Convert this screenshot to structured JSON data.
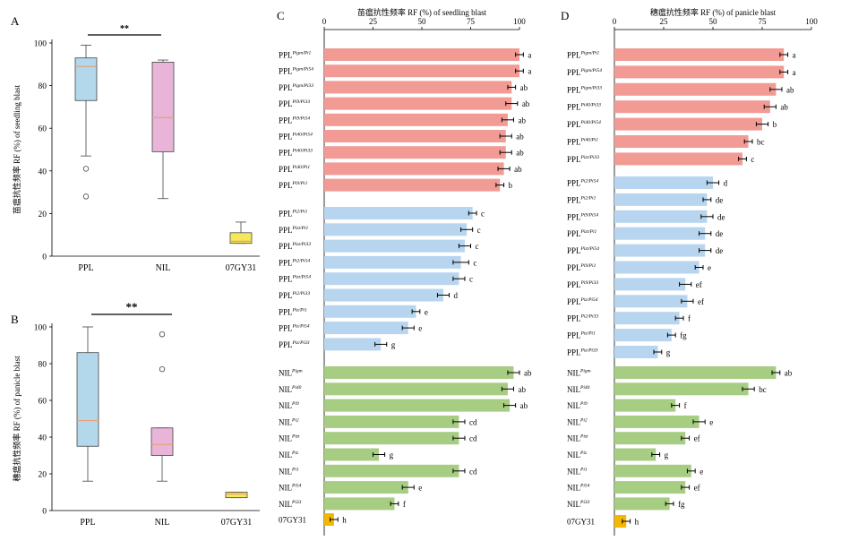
{
  "colors": {
    "ppl_box": "#b3d8ec",
    "nil_box": "#e8b4d8",
    "gy_box": "#f6e85a",
    "median_line": "#e8a070",
    "red_bar": "#f29a94",
    "blue_bar": "#b7d5ee",
    "green_bar": "#a6cd82",
    "orange_bar": "#f5b800"
  },
  "chart_data": [
    {
      "type": "box",
      "panel_label": "A",
      "ylabel": "苗瘟抗性频率 RF (%) of seedling blast",
      "ylim": [
        0,
        100
      ],
      "yticks": [
        0,
        20,
        40,
        60,
        80,
        100
      ],
      "significance": "**",
      "categories": [
        "PPL",
        "NIL",
        "07GY31"
      ],
      "boxes": [
        {
          "name": "PPL",
          "min": 47,
          "q1": 73,
          "median": 89,
          "q3": 93,
          "max": 99,
          "outliers": [
            41,
            28
          ]
        },
        {
          "name": "NIL",
          "min": 27,
          "q1": 49,
          "median": 65,
          "q3": 91,
          "max": 92,
          "outliers": []
        },
        {
          "name": "07GY31",
          "min": 6,
          "q1": 6,
          "median": 7,
          "q3": 11,
          "max": 16,
          "outliers": []
        }
      ]
    },
    {
      "type": "box",
      "panel_label": "B",
      "ylabel": "穗瘟抗性频率 RF (%) of panicle blast",
      "ylim": [
        0,
        100
      ],
      "yticks": [
        0,
        20,
        40,
        60,
        80,
        100
      ],
      "significance": "**",
      "categories": [
        "PPL",
        "NIL",
        "07GY31"
      ],
      "boxes": [
        {
          "name": "PPL",
          "min": 16,
          "q1": 35,
          "median": 49,
          "q3": 86,
          "max": 100,
          "outliers": []
        },
        {
          "name": "NIL",
          "min": 16,
          "q1": 30,
          "median": 36,
          "q3": 45,
          "max": 45,
          "outliers": [
            96,
            77
          ]
        },
        {
          "name": "07GY31",
          "min": 7,
          "q1": 7,
          "median": 9,
          "q3": 10,
          "max": 10,
          "outliers": []
        }
      ]
    },
    {
      "type": "bar",
      "orientation": "horizontal",
      "panel_label": "C",
      "title": "苗瘟抗性频率 RF (%) of seedling blast",
      "xlim": [
        0,
        100
      ],
      "xticks": [
        0,
        25,
        50,
        75,
        100
      ],
      "groups": [
        {
          "color": "red",
          "items": [
            {
              "base": "PPL",
              "sup": "Pigm/Pi1",
              "value": 100,
              "err": 2,
              "letter": "a"
            },
            {
              "base": "PPL",
              "sup": "Pigm/Pi54",
              "value": 100,
              "err": 2,
              "letter": "a"
            },
            {
              "base": "PPL",
              "sup": "Pigm/Pi33",
              "value": 96,
              "err": 2,
              "letter": "ab"
            },
            {
              "base": "PPL",
              "sup": "Pi9/Pi33",
              "value": 96,
              "err": 3,
              "letter": "ab"
            },
            {
              "base": "PPL",
              "sup": "Pi9/Pi54",
              "value": 94,
              "err": 3,
              "letter": "ab"
            },
            {
              "base": "PPL",
              "sup": "Pi40/Pi54",
              "value": 93,
              "err": 3,
              "letter": "ab"
            },
            {
              "base": "PPL",
              "sup": "Pi40/Pi33",
              "value": 93,
              "err": 3,
              "letter": "ab"
            },
            {
              "base": "PPL",
              "sup": "Pi40/Pi1",
              "value": 92,
              "err": 3,
              "letter": "ab"
            },
            {
              "base": "PPL",
              "sup": "Pi9/Pi1",
              "value": 90,
              "err": 2,
              "letter": "b"
            }
          ]
        },
        {
          "color": "blue",
          "items": [
            {
              "base": "PPL",
              "sup": "Pi2/Pi1",
              "value": 76,
              "err": 2,
              "letter": "c"
            },
            {
              "base": "PPL",
              "sup": "Pizt/Pi1",
              "value": 73,
              "err": 3,
              "letter": "c"
            },
            {
              "base": "PPL",
              "sup": "Pizt/Pi33",
              "value": 72,
              "err": 3,
              "letter": "c"
            },
            {
              "base": "PPL",
              "sup": "Pi2/Pi54",
              "value": 70,
              "err": 4,
              "letter": "c"
            },
            {
              "base": "PPL",
              "sup": "Pizt/Pi54",
              "value": 69,
              "err": 3,
              "letter": "c"
            },
            {
              "base": "PPL",
              "sup": "Pi2/Pi33",
              "value": 61,
              "err": 3,
              "letter": "d"
            },
            {
              "base": "PPL",
              "sup": "Piz/Pi1",
              "value": 47,
              "err": 2,
              "letter": "e"
            },
            {
              "base": "PPL",
              "sup": "Piz/Pi54",
              "value": 43,
              "err": 3,
              "letter": "e"
            },
            {
              "base": "PPL",
              "sup": "Piz/Pi33",
              "value": 29,
              "err": 3,
              "letter": "g"
            }
          ]
        },
        {
          "color": "green",
          "items": [
            {
              "base": "NIL",
              "sup": "Pigm",
              "value": 97,
              "err": 3,
              "letter": "ab"
            },
            {
              "base": "NIL",
              "sup": "Pi40",
              "value": 94,
              "err": 3,
              "letter": "ab"
            },
            {
              "base": "NIL",
              "sup": "Pi9",
              "value": 95,
              "err": 3,
              "letter": "ab"
            },
            {
              "base": "NIL",
              "sup": "Pi2",
              "value": 69,
              "err": 3,
              "letter": "cd"
            },
            {
              "base": "NIL",
              "sup": "Pizt",
              "value": 69,
              "err": 3,
              "letter": "cd"
            },
            {
              "base": "NIL",
              "sup": "Piz",
              "value": 28,
              "err": 3,
              "letter": "g"
            },
            {
              "base": "NIL",
              "sup": "Pi1",
              "value": 69,
              "err": 3,
              "letter": "cd"
            },
            {
              "base": "NIL",
              "sup": "Pi54",
              "value": 43,
              "err": 3,
              "letter": "e"
            },
            {
              "base": "NIL",
              "sup": "Pi33",
              "value": 36,
              "err": 2,
              "letter": "f"
            }
          ]
        },
        {
          "color": "orange",
          "items": [
            {
              "base": "07GY31",
              "sup": "",
              "value": 5,
              "err": 2,
              "letter": "h"
            }
          ]
        }
      ]
    },
    {
      "type": "bar",
      "orientation": "horizontal",
      "panel_label": "D",
      "title": "穗瘟抗性频率 RF (%) of panicle blast",
      "xlim": [
        0,
        100
      ],
      "xticks": [
        0,
        25,
        50,
        75,
        100
      ],
      "groups": [
        {
          "color": "red",
          "items": [
            {
              "base": "PPL",
              "sup": "Pigm/Pi1",
              "value": 86,
              "err": 2,
              "letter": "a"
            },
            {
              "base": "PPL",
              "sup": "Pigm/Pi54",
              "value": 86,
              "err": 2,
              "letter": "a"
            },
            {
              "base": "PPL",
              "sup": "Pigm/Pi33",
              "value": 82,
              "err": 3,
              "letter": "ab"
            },
            {
              "base": "PPL",
              "sup": "Pi40/Pi33",
              "value": 79,
              "err": 3,
              "letter": "ab"
            },
            {
              "base": "PPL",
              "sup": "Pi40/Pi54",
              "value": 75,
              "err": 3,
              "letter": "b"
            },
            {
              "base": "PPL",
              "sup": "Pi40/Pi1",
              "value": 68,
              "err": 2,
              "letter": "bc"
            },
            {
              "base": "PPL",
              "sup": "Pizt/Pi33",
              "value": 65,
              "err": 2,
              "letter": "c"
            }
          ]
        },
        {
          "color": "blue",
          "items": [
            {
              "base": "PPL",
              "sup": "Pi2/Pi54",
              "value": 50,
              "err": 3,
              "letter": "d"
            },
            {
              "base": "PPL",
              "sup": "Pi2/Pi1",
              "value": 47,
              "err": 2,
              "letter": "de"
            },
            {
              "base": "PPL",
              "sup": "Pi9/Pi54",
              "value": 47,
              "err": 3,
              "letter": "de"
            },
            {
              "base": "PPL",
              "sup": "Pizt/Pi1",
              "value": 46,
              "err": 3,
              "letter": "de"
            },
            {
              "base": "PPL",
              "sup": "Pizt/Pi54",
              "value": 46,
              "err": 3,
              "letter": "de"
            },
            {
              "base": "PPL",
              "sup": "Pi9/Pi1",
              "value": 43,
              "err": 2,
              "letter": "e"
            },
            {
              "base": "PPL",
              "sup": "Pi9/Pi33",
              "value": 36,
              "err": 3,
              "letter": "ef"
            },
            {
              "base": "PPL",
              "sup": "Piz/Pi54",
              "value": 37,
              "err": 3,
              "letter": "ef"
            },
            {
              "base": "PPL",
              "sup": "Pi2/Pi33",
              "value": 33,
              "err": 2,
              "letter": "f"
            },
            {
              "base": "PPL",
              "sup": "Piz/Pi1",
              "value": 29,
              "err": 2,
              "letter": "fg"
            },
            {
              "base": "PPL",
              "sup": "Piz/Pi33",
              "value": 22,
              "err": 2,
              "letter": "g"
            }
          ]
        },
        {
          "color": "green",
          "items": [
            {
              "base": "NIL",
              "sup": "Pigm",
              "value": 82,
              "err": 2,
              "letter": "ab"
            },
            {
              "base": "NIL",
              "sup": "Pi40",
              "value": 68,
              "err": 3,
              "letter": "bc"
            },
            {
              "base": "NIL",
              "sup": "Pi9",
              "value": 31,
              "err": 2,
              "letter": "f"
            },
            {
              "base": "NIL",
              "sup": "Pi2",
              "value": 43,
              "err": 3,
              "letter": "e"
            },
            {
              "base": "NIL",
              "sup": "Pizt",
              "value": 36,
              "err": 2,
              "letter": "ef"
            },
            {
              "base": "NIL",
              "sup": "Piz",
              "value": 21,
              "err": 2,
              "letter": "g"
            },
            {
              "base": "NIL",
              "sup": "Pi1",
              "value": 39,
              "err": 2,
              "letter": "e"
            },
            {
              "base": "NIL",
              "sup": "Pi54",
              "value": 36,
              "err": 2,
              "letter": "ef"
            },
            {
              "base": "NIL",
              "sup": "Pi33",
              "value": 28,
              "err": 2,
              "letter": "fg"
            }
          ]
        },
        {
          "color": "orange",
          "items": [
            {
              "base": "07GY31",
              "sup": "",
              "value": 6,
              "err": 2,
              "letter": "h"
            }
          ]
        }
      ]
    }
  ]
}
